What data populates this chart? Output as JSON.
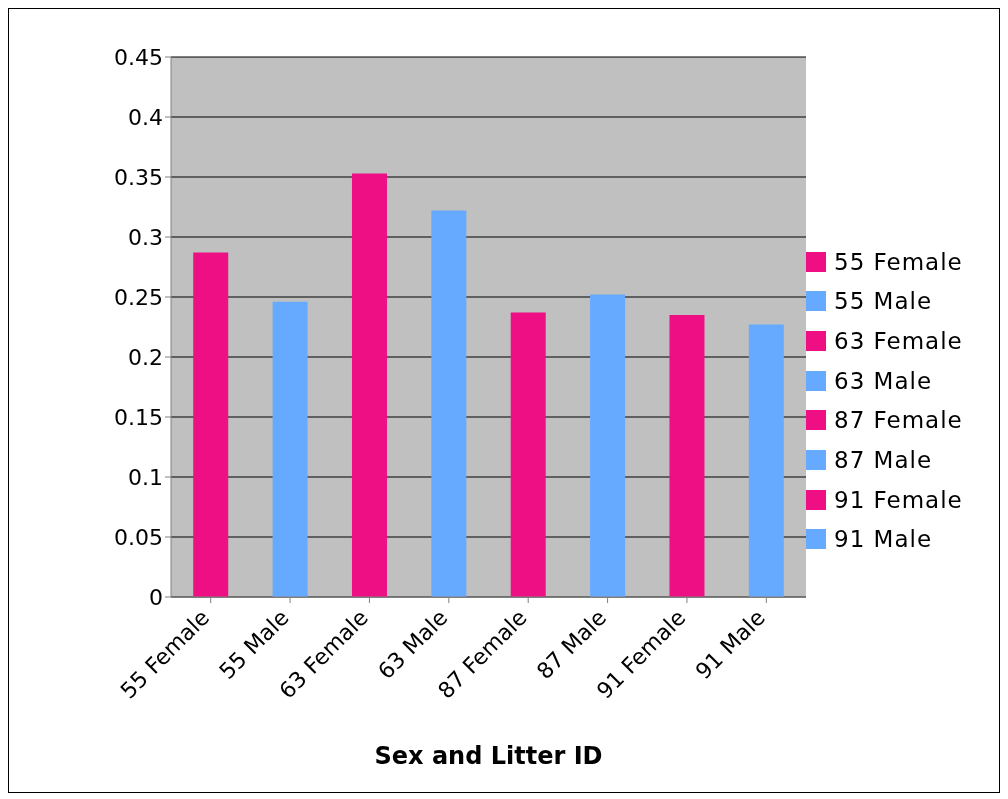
{
  "chart_data": {
    "type": "bar",
    "xlabel": "Sex and Litter ID",
    "categories": [
      "55 Female",
      "55 Male",
      "63 Female",
      "63 Male",
      "87 Female",
      "87 Male",
      "91 Female",
      "91 Male"
    ],
    "stacked": true,
    "series": [
      {
        "name": "55 Female",
        "color": "#ee0f85",
        "values": [
          0.287,
          null,
          null,
          null,
          null,
          null,
          null,
          null
        ]
      },
      {
        "name": "55 Male",
        "color": "#66aaff",
        "values": [
          null,
          0.246,
          null,
          null,
          null,
          null,
          null,
          null
        ]
      },
      {
        "name": "63 Female",
        "color": "#ee0f85",
        "values": [
          null,
          null,
          0.353,
          null,
          null,
          null,
          null,
          null
        ]
      },
      {
        "name": "63 Male",
        "color": "#66aaff",
        "values": [
          null,
          null,
          null,
          0.322,
          null,
          null,
          null,
          null
        ]
      },
      {
        "name": "87 Female",
        "color": "#ee0f85",
        "values": [
          null,
          null,
          null,
          null,
          0.237,
          null,
          null,
          null
        ]
      },
      {
        "name": "87 Male",
        "color": "#66aaff",
        "values": [
          null,
          null,
          null,
          null,
          null,
          0.252,
          null,
          null
        ]
      },
      {
        "name": "91 Female",
        "color": "#ee0f85",
        "values": [
          null,
          null,
          null,
          null,
          null,
          null,
          0.235,
          null
        ]
      },
      {
        "name": "91 Male",
        "color": "#66aaff",
        "values": [
          null,
          null,
          null,
          null,
          null,
          null,
          null,
          0.227
        ]
      }
    ],
    "ylim": [
      0,
      0.45
    ],
    "yticks": [
      0,
      0.05,
      0.1,
      0.15,
      0.2,
      0.25,
      0.3,
      0.35,
      0.4,
      0.45
    ],
    "grid": "y",
    "legend": "right"
  }
}
